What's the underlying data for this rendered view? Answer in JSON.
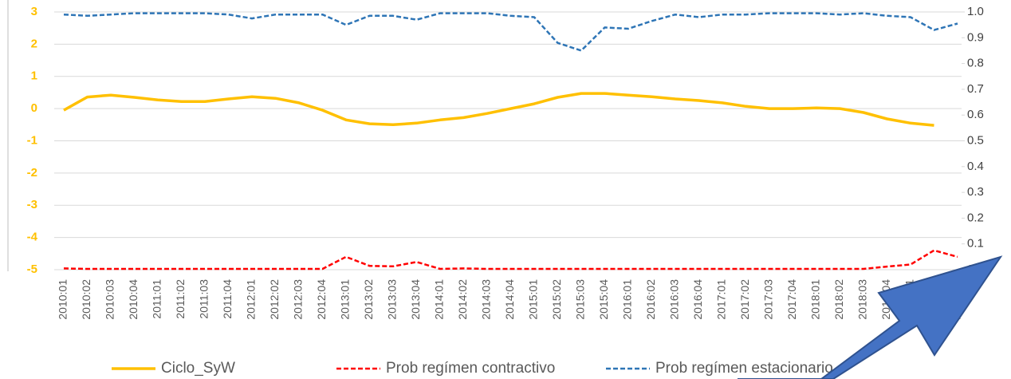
{
  "chart_data": {
    "type": "line",
    "categories": [
      "2010:01",
      "2010:02",
      "2010:03",
      "2010:04",
      "2011:01",
      "2011:02",
      "2011:03",
      "2011:04",
      "2012:01",
      "2012:02",
      "2012:03",
      "2012:04",
      "2013:01",
      "2013:02",
      "2013:03",
      "2013:04",
      "2014:01",
      "2014:02",
      "2014:03",
      "2014:04",
      "2015:01",
      "2015:02",
      "2015:03",
      "2015:04",
      "2016:01",
      "2016:02",
      "2016:03",
      "2016:04",
      "2017:01",
      "2017:02",
      "2017:03",
      "2017:04",
      "2018:01",
      "2018:02",
      "2018:03",
      "2018:04",
      "2019:01",
      "2019:02",
      "2019:03"
    ],
    "series": [
      {
        "name": "Ciclo_SyW",
        "color": "#ffc000",
        "dash": false,
        "axis": "y",
        "values": [
          -0.05,
          0.36,
          0.42,
          0.35,
          0.27,
          0.22,
          0.22,
          0.3,
          0.37,
          0.32,
          0.18,
          -0.05,
          -0.35,
          -0.47,
          -0.5,
          -0.45,
          -0.35,
          -0.28,
          -0.15,
          0.0,
          0.15,
          0.35,
          0.47,
          0.47,
          0.42,
          0.37,
          0.3,
          0.25,
          0.18,
          0.07,
          0.0,
          0.0,
          0.02,
          0.0,
          -0.12,
          -0.32,
          -0.45,
          -0.52,
          null
        ]
      },
      {
        "name": "Prob regímen contractivo",
        "color": "#ff0000",
        "dash": true,
        "axis": "y2",
        "values": [
          0.005,
          0.003,
          0.003,
          0.003,
          0.003,
          0.003,
          0.003,
          0.003,
          0.003,
          0.003,
          0.003,
          0.003,
          0.05,
          0.015,
          0.013,
          0.03,
          0.003,
          0.005,
          0.003,
          0.003,
          0.003,
          0.003,
          0.003,
          0.003,
          0.003,
          0.003,
          0.003,
          0.003,
          0.003,
          0.003,
          0.003,
          0.003,
          0.003,
          0.003,
          0.003,
          0.012,
          0.02,
          0.075,
          0.05
        ]
      },
      {
        "name": "Prob regímen estacionario",
        "color": "#2e75b6",
        "dash": true,
        "axis": "y2",
        "values": [
          0.99,
          0.985,
          0.99,
          0.995,
          0.995,
          0.995,
          0.995,
          0.99,
          0.975,
          0.99,
          0.99,
          0.99,
          0.95,
          0.985,
          0.985,
          0.97,
          0.995,
          0.995,
          0.995,
          0.985,
          0.98,
          0.88,
          0.85,
          0.94,
          0.935,
          0.965,
          0.99,
          0.98,
          0.99,
          0.99,
          0.995,
          0.995,
          0.995,
          0.99,
          0.995,
          0.985,
          0.98,
          0.93,
          0.955
        ]
      }
    ],
    "ylim": [
      -5,
      3
    ],
    "yticks": [
      -5,
      -4,
      -3,
      -2,
      -1,
      0,
      1,
      2,
      3
    ],
    "y2lim": [
      0,
      1
    ],
    "y2ticks": [
      {
        "value": 0,
        "label": "0.0"
      },
      0.1,
      0.2,
      0.3,
      0.4,
      0.5,
      0.6,
      0.7,
      0.8,
      0.9,
      {
        "value": 1,
        "label": "1.0"
      }
    ],
    "grid": true,
    "legend": "bottom"
  }
}
